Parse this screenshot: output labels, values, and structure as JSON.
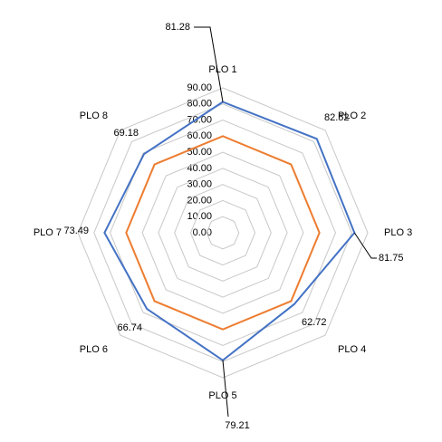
{
  "chart_data": {
    "type": "radar",
    "categories": [
      "PLO 1",
      "PLO 2",
      "PLO 3",
      "PLO 4",
      "PLO 5",
      "PLO 6",
      "PLO 7",
      "PLO 8"
    ],
    "series": [
      {
        "color": "#4472c4",
        "values": [
          81.28,
          82.52,
          81.75,
          62.72,
          79.21,
          66.74,
          73.49,
          69.18
        ],
        "data_labels": true
      },
      {
        "color": "#ed7d31",
        "values": [
          60,
          60,
          60,
          60,
          60,
          60,
          60,
          60
        ],
        "data_labels": false
      }
    ],
    "ylim": [
      0,
      90
    ],
    "yticks": [
      {
        "value": 0,
        "label": "0.00"
      },
      {
        "value": 10,
        "label": "10.00"
      },
      {
        "value": 20,
        "label": "20.00"
      },
      {
        "value": 30,
        "label": "30.00"
      },
      {
        "value": 40,
        "label": "40.00"
      },
      {
        "value": 50,
        "label": "50.00"
      },
      {
        "value": 60,
        "label": "60.00"
      },
      {
        "value": 70,
        "label": "70.00"
      },
      {
        "value": 80,
        "label": "80.00"
      },
      {
        "value": 90,
        "label": "90.00"
      }
    ],
    "grid": true
  }
}
